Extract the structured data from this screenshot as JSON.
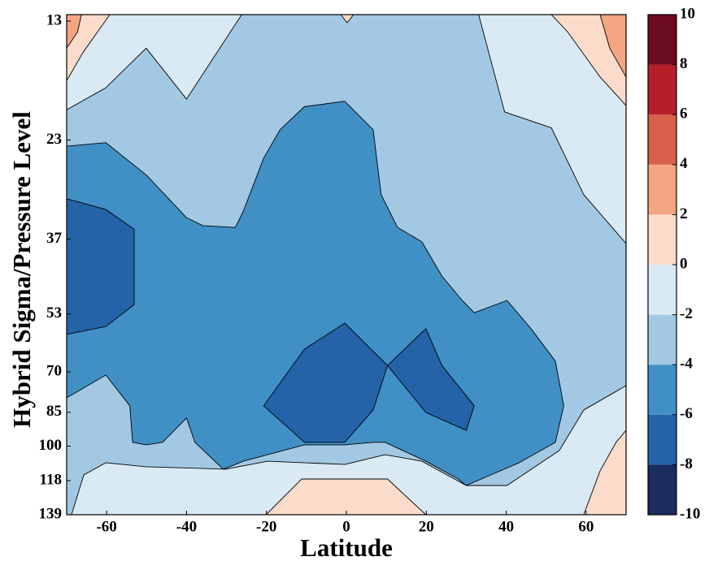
{
  "chart_data": {
    "type": "contourf",
    "xlabel": "Latitude",
    "ylabel": "Hybrid Sigma/Pressure Level",
    "xlim": [
      -70,
      70
    ],
    "ylim": [
      12.6,
      139
    ],
    "ylog": true,
    "yinvert": true,
    "xticks": [
      -60,
      -40,
      -20,
      0,
      20,
      40,
      60
    ],
    "yticks": [
      13,
      23,
      37,
      53,
      70,
      85,
      100,
      118,
      139
    ],
    "levels": [
      -10,
      -8,
      -6,
      -4,
      -2,
      0,
      2,
      4,
      6,
      8,
      10
    ],
    "colors": [
      "#1b2c5e",
      "#2463a8",
      "#4090c6",
      "#a2c8e3",
      "#daeaf4",
      "#fbdccb",
      "#f4a582",
      "#d8604c",
      "#b51f2a",
      "#6b0b1f"
    ],
    "regions": [
      {
        "band": [
          -4,
          -2
        ],
        "points": [
          [
            -70,
            12.6
          ],
          [
            70,
            12.6
          ],
          [
            70,
            139
          ],
          [
            -70,
            139
          ]
        ]
      },
      {
        "band": [
          -2,
          0
        ],
        "points": [
          [
            -70,
            12.6
          ],
          [
            -70,
            19.9
          ],
          [
            -60.2,
            17.9
          ],
          [
            -50.1,
            14.8
          ],
          [
            -40.0,
            18.9
          ],
          [
            -26.2,
            12.6
          ]
        ]
      },
      {
        "band": [
          -2,
          0
        ],
        "points": [
          [
            33.1,
            12.6
          ],
          [
            39.6,
            20.1
          ],
          [
            51.3,
            21.7
          ],
          [
            59.4,
            29.9
          ],
          [
            70,
            37.8
          ],
          [
            70,
            12.6
          ]
        ]
      },
      {
        "band": [
          -2,
          0
        ],
        "points": [
          [
            -68.8,
            139
          ],
          [
            -65.7,
            114.8
          ],
          [
            -60.2,
            108.3
          ],
          [
            -50.1,
            110.4
          ],
          [
            -30.2,
            111.7
          ],
          [
            -19.7,
            107.5
          ],
          [
            -0.4,
            109.2
          ],
          [
            9.7,
            104.2
          ],
          [
            18.9,
            107.5
          ],
          [
            30.0,
            120.8
          ],
          [
            40.2,
            120.8
          ],
          [
            53.3,
            102.1
          ],
          [
            59.4,
            84.1
          ],
          [
            70,
            74.8
          ],
          [
            70,
            139
          ]
        ]
      },
      {
        "band": [
          0,
          2
        ],
        "points": [
          [
            -70,
            12.6
          ],
          [
            -70,
            17.3
          ],
          [
            -65.9,
            15.1
          ],
          [
            -59.2,
            12.6
          ]
        ]
      },
      {
        "band": [
          0,
          2
        ],
        "points": [
          [
            51.3,
            12.6
          ],
          [
            55.4,
            13.7
          ],
          [
            63.5,
            17.0
          ],
          [
            70,
            19.5
          ],
          [
            70,
            12.6
          ]
        ]
      },
      {
        "band": [
          0,
          2
        ],
        "points": [
          [
            -1.4,
            12.6
          ],
          [
            0.2,
            13.1
          ],
          [
            1.8,
            12.6
          ]
        ]
      },
      {
        "band": [
          0,
          2
        ],
        "points": [
          [
            -20.1,
            139
          ],
          [
            -11.2,
            117.1
          ],
          [
            10.3,
            117.1
          ],
          [
            19.9,
            139
          ]
        ]
      },
      {
        "band": [
          0,
          2
        ],
        "points": [
          [
            70,
            92.7
          ],
          [
            67.5,
            98.2
          ],
          [
            63.5,
            112.6
          ],
          [
            59.4,
            139
          ],
          [
            70,
            139
          ]
        ]
      },
      {
        "band": [
          2,
          4
        ],
        "points": [
          [
            -70,
            12.6
          ],
          [
            -66.3,
            12.6
          ],
          [
            -67.3,
            13.7
          ],
          [
            -70,
            14.8
          ]
        ]
      },
      {
        "band": [
          2,
          4
        ],
        "points": [
          [
            63.5,
            12.6
          ],
          [
            65.9,
            14.8
          ],
          [
            70,
            17.0
          ],
          [
            70,
            12.6
          ]
        ]
      },
      {
        "band": [
          -6,
          -4
        ],
        "points": [
          [
            -70,
            23.7
          ],
          [
            -60.2,
            23.3
          ],
          [
            -50.1,
            27.2
          ],
          [
            -40.0,
            33.4
          ],
          [
            -35.9,
            34.7
          ],
          [
            -27.8,
            35.0
          ],
          [
            -25.8,
            32.4
          ],
          [
            -20.7,
            25.1
          ],
          [
            -16.6,
            21.9
          ],
          [
            -10.5,
            19.6
          ],
          [
            -0.4,
            19.1
          ],
          [
            6.7,
            21.9
          ],
          [
            8.7,
            29.9
          ],
          [
            12.8,
            35.0
          ],
          [
            18.9,
            37.5
          ],
          [
            23.9,
            44.2
          ],
          [
            29.0,
            49.7
          ],
          [
            32.0,
            52.7
          ],
          [
            40.2,
            49.7
          ],
          [
            46.2,
            56.9
          ],
          [
            52.3,
            66.5
          ],
          [
            54.4,
            82.4
          ],
          [
            52.3,
            98.2
          ],
          [
            43.2,
            108.3
          ],
          [
            30.0,
            120.8
          ],
          [
            28.0,
            117.1
          ],
          [
            19.9,
            107.5
          ],
          [
            9.7,
            98.2
          ],
          [
            6.7,
            98.2
          ],
          [
            -0.4,
            99.4
          ],
          [
            -10.5,
            99.4
          ],
          [
            -25.8,
            107.5
          ],
          [
            -30.8,
            111.7
          ],
          [
            -37.9,
            98.2
          ],
          [
            -40.0,
            87.4
          ],
          [
            -46.0,
            98.2
          ],
          [
            -50.1,
            99.4
          ],
          [
            -53.5,
            98.2
          ],
          [
            -54.2,
            82.4
          ],
          [
            -60.2,
            71.1
          ],
          [
            -70,
            79.3
          ]
        ]
      },
      {
        "band": [
          -8,
          -6
        ],
        "points": [
          [
            -70,
            30.5
          ],
          [
            -60.2,
            32.1
          ],
          [
            -53.1,
            35.3
          ],
          [
            -53.1,
            50.7
          ],
          [
            -60.2,
            56.3
          ],
          [
            -70,
            58.5
          ]
        ]
      },
      {
        "band": [
          -8,
          -6
        ],
        "points": [
          [
            -20.7,
            82.4
          ],
          [
            -10.5,
            62.8
          ],
          [
            -0.4,
            55.4
          ],
          [
            10.3,
            67.9
          ],
          [
            6.7,
            84.1
          ],
          [
            -0.4,
            98.2
          ],
          [
            -10.5,
            98.2
          ]
        ]
      },
      {
        "band": [
          -8,
          -6
        ],
        "points": [
          [
            10.3,
            67.9
          ],
          [
            19.9,
            56.9
          ],
          [
            23.9,
            67.9
          ],
          [
            32.0,
            82.4
          ],
          [
            30.0,
            92.7
          ],
          [
            19.9,
            85.1
          ]
        ]
      }
    ]
  }
}
